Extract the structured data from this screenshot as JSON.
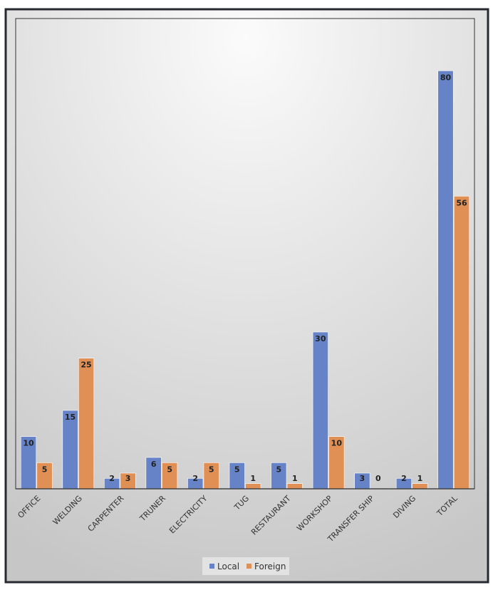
{
  "chart_data": {
    "type": "bar",
    "title": "",
    "xlabel": "",
    "ylabel": "",
    "ylim": [
      0,
      90
    ],
    "grid": false,
    "legend_position": "bottom",
    "categories": [
      "OFFICE",
      "WELDING",
      "CARPENTER",
      "TRUNER",
      "ELECTRICITY",
      "TUG",
      "RESTAURANT",
      "WORKSHOP",
      "TRANSFER SHIP",
      "DIVING",
      "TOTAL"
    ],
    "series": [
      {
        "name": "Local",
        "color": "#6583c6",
        "values": [
          10,
          15,
          2,
          6,
          2,
          5,
          5,
          30,
          3,
          2,
          80
        ]
      },
      {
        "name": "Foreign",
        "color": "#e08f55",
        "values": [
          5,
          25,
          3,
          5,
          5,
          1,
          1,
          10,
          0,
          1,
          56
        ]
      }
    ]
  }
}
